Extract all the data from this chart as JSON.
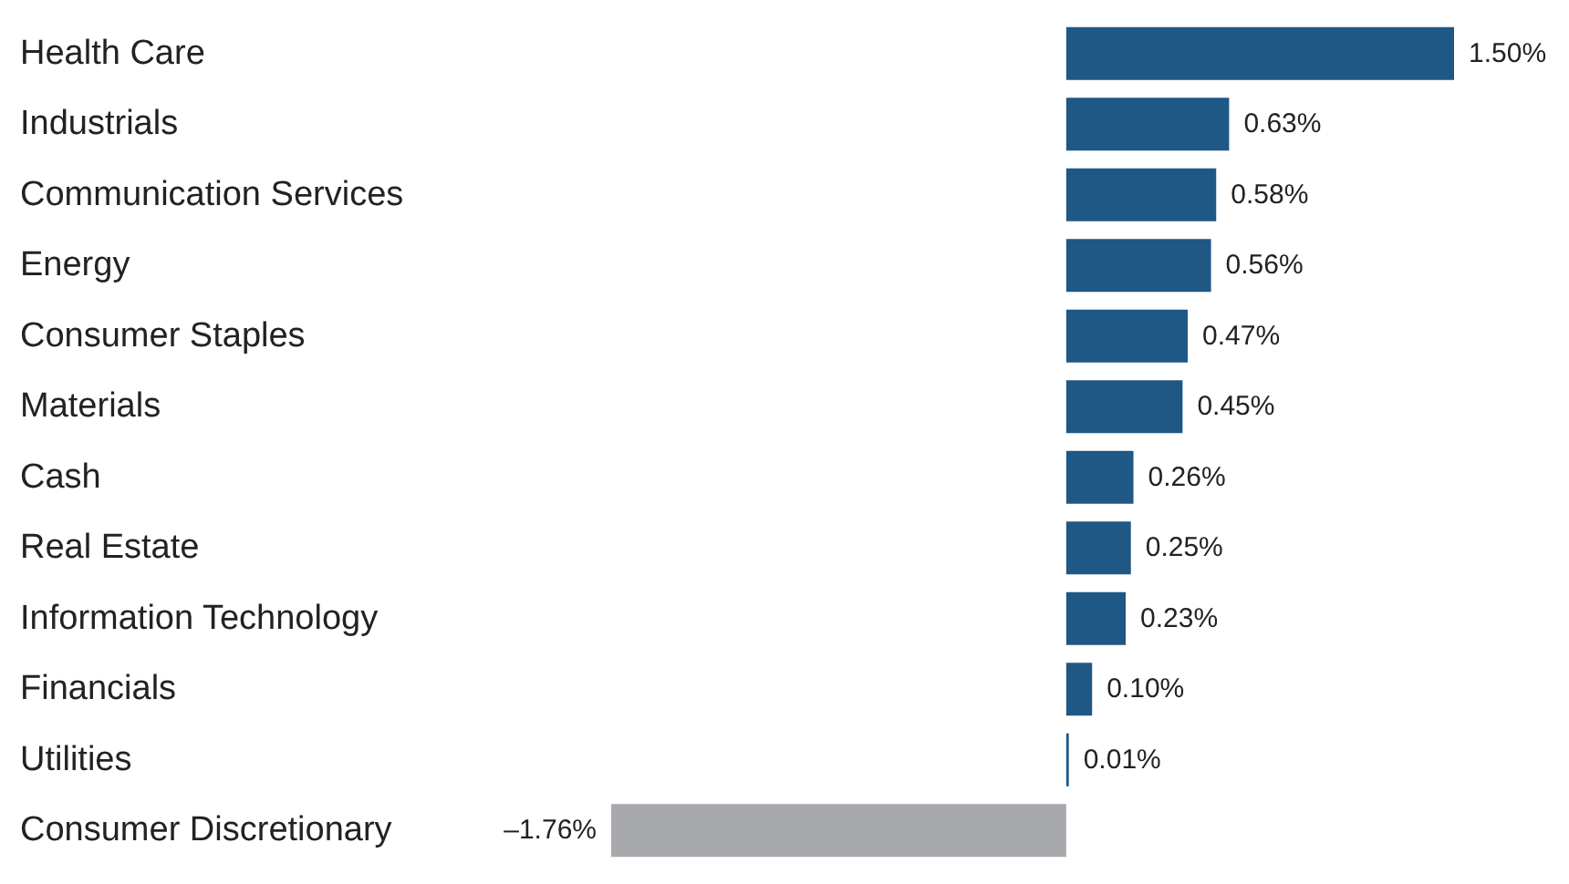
{
  "chart_data": {
    "type": "bar",
    "orientation": "horizontal",
    "categories": [
      "Health Care",
      "Industrials",
      "Communication Services",
      "Energy",
      "Consumer Staples",
      "Materials",
      "Cash",
      "Real Estate",
      "Information Technology",
      "Financials",
      "Utilities",
      "Consumer Discretionary"
    ],
    "values": [
      1.5,
      0.63,
      0.58,
      0.56,
      0.47,
      0.45,
      0.26,
      0.25,
      0.23,
      0.1,
      0.01,
      -1.76
    ],
    "value_labels": [
      "1.50%",
      "0.63%",
      "0.58%",
      "0.56%",
      "0.47%",
      "0.45%",
      "0.26%",
      "0.25%",
      "0.23%",
      "0.10%",
      "0.01%",
      "–1.76%"
    ],
    "colors": [
      "#1f5785",
      "#1f5785",
      "#1f5785",
      "#1f5785",
      "#1f5785",
      "#1f5785",
      "#1f5785",
      "#1f5785",
      "#1f5785",
      "#1f5785",
      "#1f5785",
      "#a7a9ac"
    ],
    "grid": false
  }
}
